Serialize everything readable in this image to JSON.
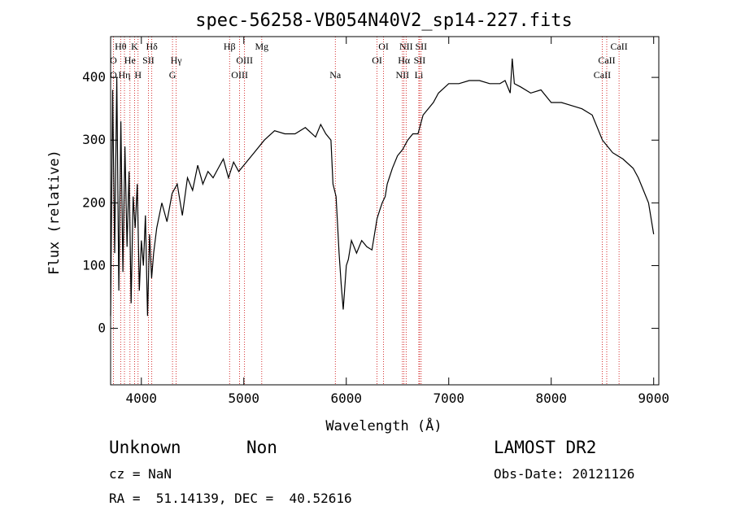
{
  "chart_data": {
    "type": "line",
    "title": "spec-56258-VB054N40V2_sp14-227.fits",
    "xlabel": "Wavelength (Å)",
    "ylabel": "Flux (relative)",
    "xlim": [
      3700,
      9050
    ],
    "ylim": [
      -90,
      465
    ],
    "x_ticks": [
      4000,
      5000,
      6000,
      7000,
      8000,
      9000
    ],
    "y_ticks": [
      0,
      100,
      200,
      300,
      400
    ],
    "grid": false,
    "series": [
      {
        "x": [
          3700,
          3720,
          3740,
          3760,
          3780,
          3800,
          3820,
          3840,
          3860,
          3880,
          3900,
          3920,
          3940,
          3960,
          3980,
          4000,
          4020,
          4040,
          4060,
          4080,
          4100,
          4120,
          4150,
          4200,
          4250,
          4300,
          4350,
          4400,
          4450,
          4500,
          4550,
          4600,
          4650,
          4700,
          4750,
          4800,
          4850,
          4900,
          4950,
          5000,
          5100,
          5200,
          5300,
          5400,
          5500,
          5600,
          5700,
          5750,
          5800,
          5850,
          5870,
          5900,
          5930,
          5950,
          5970,
          6000,
          6020,
          6050,
          6100,
          6150,
          6200,
          6250,
          6300,
          6330,
          6350,
          6380,
          6400,
          6450,
          6500,
          6550,
          6600,
          6650,
          6700,
          6750,
          6800,
          6850,
          6900,
          7000,
          7100,
          7200,
          7300,
          7400,
          7500,
          7550,
          7600,
          7620,
          7640,
          7700,
          7800,
          7900,
          8000,
          8100,
          8200,
          8300,
          8400,
          8500,
          8600,
          8700,
          8800,
          8850,
          8900,
          8950,
          9000
        ],
        "y": [
          20,
          380,
          120,
          400,
          60,
          330,
          90,
          290,
          130,
          250,
          40,
          210,
          160,
          230,
          60,
          140,
          100,
          180,
          20,
          150,
          80,
          120,
          160,
          200,
          170,
          215,
          230,
          180,
          240,
          220,
          260,
          230,
          250,
          240,
          255,
          270,
          240,
          265,
          250,
          260,
          280,
          300,
          315,
          310,
          310,
          320,
          305,
          325,
          310,
          300,
          230,
          210,
          120,
          70,
          30,
          100,
          110,
          140,
          120,
          140,
          130,
          125,
          175,
          190,
          200,
          210,
          230,
          255,
          275,
          285,
          300,
          310,
          310,
          340,
          350,
          360,
          375,
          390,
          390,
          395,
          395,
          390,
          390,
          395,
          375,
          430,
          390,
          385,
          375,
          380,
          360,
          360,
          355,
          350,
          340,
          300,
          280,
          270,
          255,
          240,
          220,
          200,
          150
        ]
      }
    ],
    "line_labels": [
      {
        "label": "Hθ",
        "wavelength": 3798,
        "tier": 1
      },
      {
        "label": "O",
        "wavelength": 3727,
        "tier": 2
      },
      {
        "label": "O",
        "wavelength": 3727,
        "tier": 3
      },
      {
        "label": "K",
        "wavelength": 3934,
        "tier": 1
      },
      {
        "label": "He",
        "wavelength": 3889,
        "tier": 2
      },
      {
        "label": "Hη",
        "wavelength": 3835,
        "tier": 3
      },
      {
        "label": "H",
        "wavelength": 3968,
        "tier": 3
      },
      {
        "label": "Hδ",
        "wavelength": 4102,
        "tier": 1
      },
      {
        "label": "SII",
        "wavelength": 4069,
        "tier": 2
      },
      {
        "label": "Hγ",
        "wavelength": 4340,
        "tier": 2
      },
      {
        "label": "G",
        "wavelength": 4304,
        "tier": 3
      },
      {
        "label": "Hβ",
        "wavelength": 4861,
        "tier": 1
      },
      {
        "label": "OIII",
        "wavelength": 5007,
        "tier": 2
      },
      {
        "label": "OIII",
        "wavelength": 4959,
        "tier": 3
      },
      {
        "label": "Mg",
        "wavelength": 5175,
        "tier": 1
      },
      {
        "label": "Na",
        "wavelength": 5893,
        "tier": 3
      },
      {
        "label": "OI",
        "wavelength": 6364,
        "tier": 1
      },
      {
        "label": "OI",
        "wavelength": 6300,
        "tier": 2
      },
      {
        "label": "NII",
        "wavelength": 6584,
        "tier": 1
      },
      {
        "label": "Hα",
        "wavelength": 6563,
        "tier": 2
      },
      {
        "label": "NII",
        "wavelength": 6548,
        "tier": 3
      },
      {
        "label": "SII",
        "wavelength": 6731,
        "tier": 1
      },
      {
        "label": "SII",
        "wavelength": 6716,
        "tier": 2
      },
      {
        "label": "Li",
        "wavelength": 6708,
        "tier": 3
      },
      {
        "label": "CaII",
        "wavelength": 8662,
        "tier": 1
      },
      {
        "label": "CaII",
        "wavelength": 8542,
        "tier": 2
      },
      {
        "label": "CaII",
        "wavelength": 8498,
        "tier": 3
      }
    ],
    "line_label_color": "#cc0000"
  },
  "footer": {
    "class_label": "Unknown",
    "subclass_label": "Non",
    "survey": "LAMOST DR2",
    "cz": "cz = NaN",
    "obs_date": "Obs-Date: 20121126",
    "coords": "RA =  51.14139, DEC =  40.52616"
  }
}
